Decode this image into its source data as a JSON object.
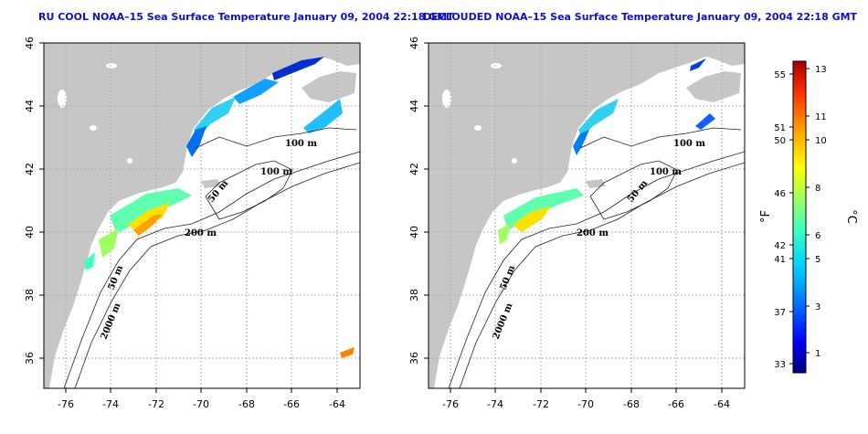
{
  "panels": [
    {
      "title": "RU COOL NOAA–15 Sea Surface Temperature January 09, 2004 22:18 GMT",
      "x_ticks": [
        "-76",
        "-74",
        "-72",
        "-70",
        "-68",
        "-66",
        "-64"
      ],
      "y_ticks": [
        "36",
        "38",
        "40",
        "42",
        "44",
        "46"
      ],
      "contour_labels": [
        "100 m",
        "100 m",
        "50 m",
        "200 m",
        "50 m",
        "2000 m"
      ]
    },
    {
      "title": "DECLOUDED NOAA–15 Sea Surface Temperature January 09, 2004 22:18 GMT",
      "x_ticks": [
        "-76",
        "-74",
        "-72",
        "-70",
        "-68",
        "-66",
        "-64"
      ],
      "y_ticks": [
        "36",
        "38",
        "40",
        "42",
        "44",
        "46"
      ],
      "contour_labels": [
        "100 m",
        "100 m",
        "50 m",
        "200 m",
        "50 m",
        "2000 m"
      ]
    }
  ],
  "colorbar": {
    "fahrenheit_labels": [
      "55",
      "51",
      "50",
      "46",
      "42",
      "41",
      "37",
      "33"
    ],
    "celsius_labels": [
      "13",
      "11",
      "10",
      "8",
      "6",
      "5",
      "3",
      "1"
    ],
    "fahrenheit_unit": "°F",
    "celsius_unit": "°C",
    "colors": [
      "#00007a",
      "#0000ff",
      "#0070ff",
      "#00d0ff",
      "#40ffc0",
      "#a0ff60",
      "#ffff00",
      "#ffa000",
      "#ff3000",
      "#a00000"
    ]
  },
  "colors": {
    "land": "#c6c6c6",
    "ocean": "#ffffff",
    "title": "#1010c8",
    "grid": "#b0b0b0"
  }
}
